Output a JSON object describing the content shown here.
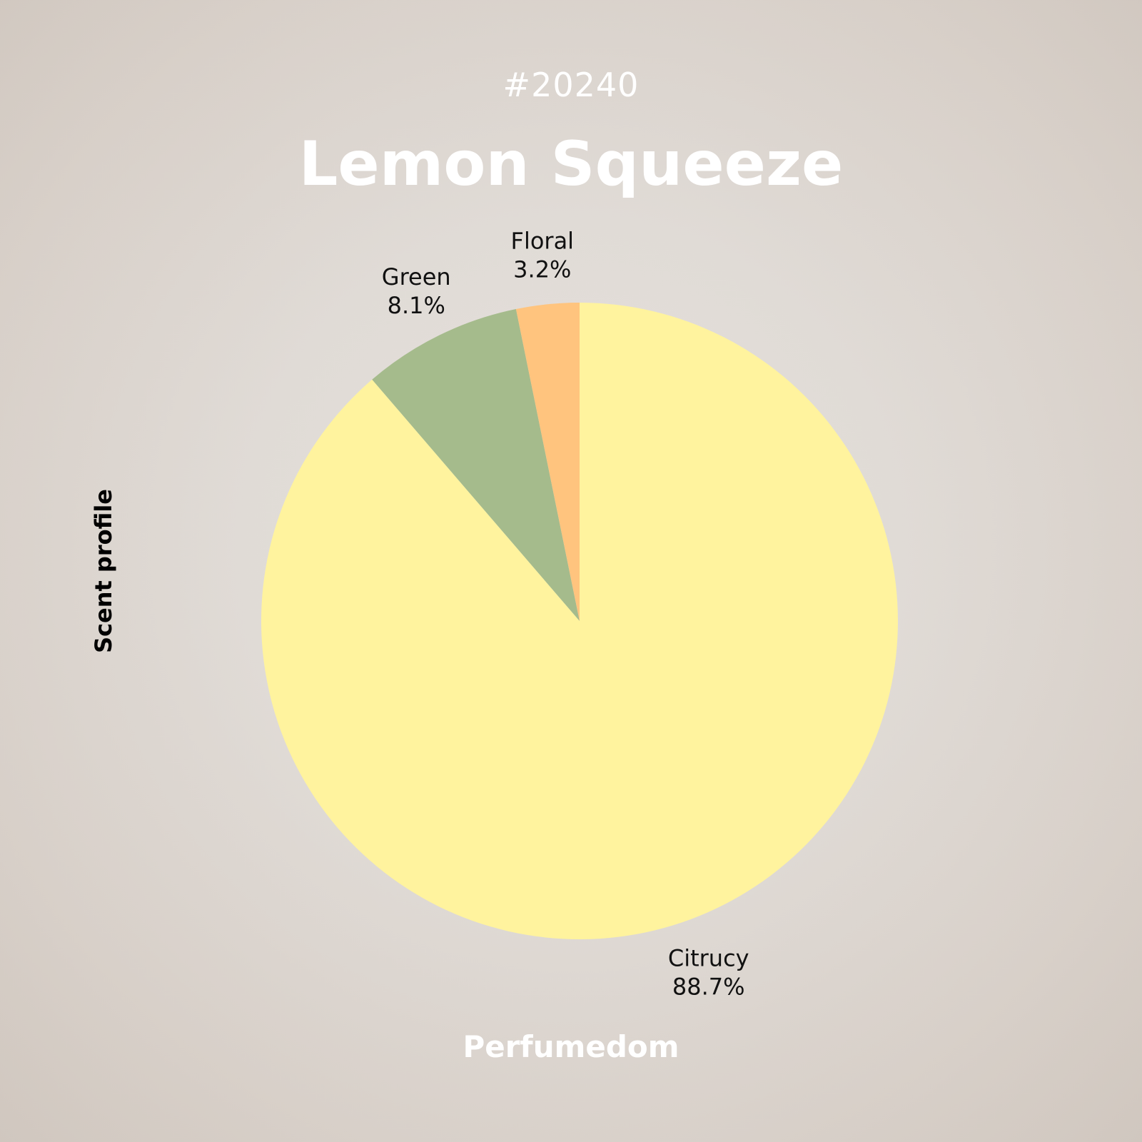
{
  "header": {
    "code": "#20240",
    "title": "Lemon Squeeze"
  },
  "footer": {
    "brand": "Perfumedom"
  },
  "chart_data": {
    "type": "pie",
    "ylabel": "Scent profile",
    "start_angle": "top",
    "direction": "clockwise",
    "slices": [
      {
        "label": "Citrucy",
        "value": 88.7,
        "display": "88.7%",
        "color": "#fff39e"
      },
      {
        "label": "Green",
        "value": 8.1,
        "display": "8.1%",
        "color": "#a5bb8c"
      },
      {
        "label": "Floral",
        "value": 3.2,
        "display": "3.2%",
        "color": "#ffc47e"
      }
    ]
  }
}
